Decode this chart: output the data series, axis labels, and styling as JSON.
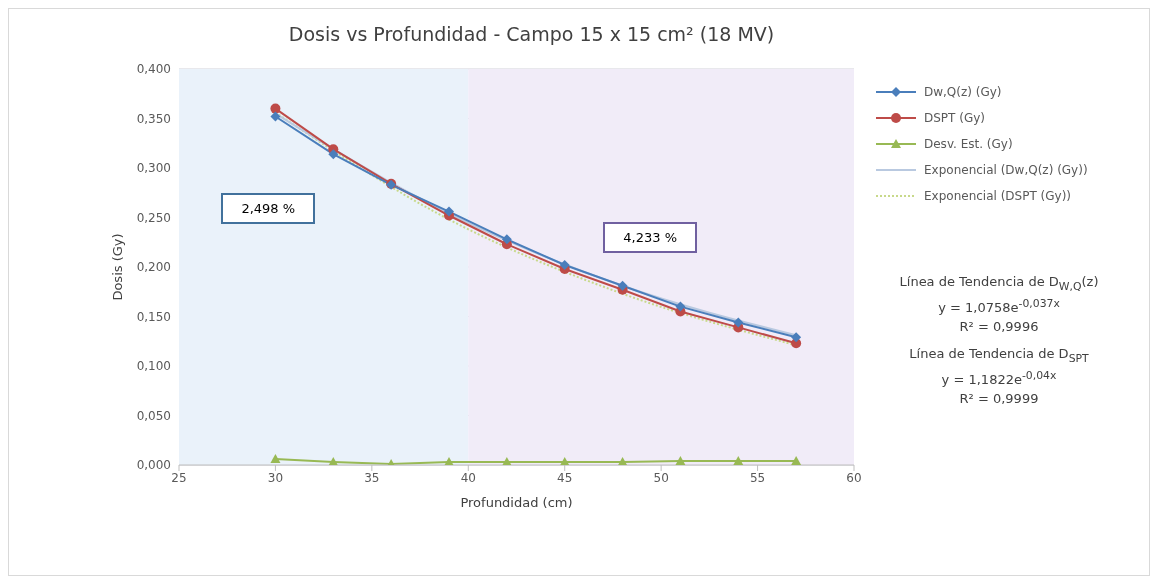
{
  "chart_data": {
    "type": "line",
    "title": "Dosis vs Profundidad - Campo 15 x 15 cm² (18 MV)",
    "xlabel": "Profundidad (cm)",
    "ylabel": "Dosis (Gy)",
    "x": [
      30,
      33,
      36,
      39,
      42,
      45,
      48,
      51,
      54,
      57
    ],
    "series": [
      {
        "name": "Dw,Q(z) (Gy)",
        "color": "#4a7ebb",
        "marker": "diamond",
        "values": [
          0.352,
          0.314,
          0.283,
          0.256,
          0.228,
          0.202,
          0.181,
          0.16,
          0.144,
          0.129
        ]
      },
      {
        "name": "DSPT (Gy)",
        "color": "#be4b48",
        "marker": "circle",
        "values": [
          0.36,
          0.319,
          0.284,
          0.252,
          0.223,
          0.198,
          0.177,
          0.155,
          0.139,
          0.123
        ]
      },
      {
        "name": "Desv. Est. (Gy)",
        "color": "#98b954",
        "marker": "triangle",
        "values": [
          0.006,
          0.003,
          0.001,
          0.003,
          0.003,
          0.003,
          0.003,
          0.004,
          0.004,
          0.004
        ]
      },
      {
        "name": "Exponencial (Dw,Q(z) (Gy))",
        "color": "#b9c9e0",
        "marker": "none",
        "line_style": "solid",
        "x": [
          30,
          39,
          48,
          57
        ],
        "values": [
          0.355,
          0.254,
          0.181,
          0.131
        ]
      },
      {
        "name": "Exponencial (DSPT (Gy))",
        "color": "#c8d98a",
        "marker": "none",
        "line_style": "dotted",
        "x": [
          30,
          39,
          48,
          57
        ],
        "values": [
          0.356,
          0.248,
          0.173,
          0.121
        ]
      }
    ],
    "xlim": [
      25,
      60
    ],
    "xticks": [
      25,
      30,
      35,
      40,
      45,
      50,
      55,
      60
    ],
    "ylim": [
      0,
      0.4
    ],
    "yticks": [
      {
        "value": 0,
        "label": "0,000"
      },
      {
        "value": 0.05,
        "label": "0,050"
      },
      {
        "value": 0.1,
        "label": "0,100"
      },
      {
        "value": 0.15,
        "label": "0,150"
      },
      {
        "value": 0.2,
        "label": "0,200"
      },
      {
        "value": 0.25,
        "label": "0,250"
      },
      {
        "value": 0.3,
        "label": "0,300"
      },
      {
        "value": 0.35,
        "label": "0,350"
      },
      {
        "value": 0.4,
        "label": "0,400"
      }
    ],
    "bands": [
      {
        "axis": "x",
        "from": 25,
        "to": 40,
        "color": "#eaf2fa"
      },
      {
        "axis": "x",
        "from": 40,
        "to": 60,
        "color": "#f1ecf8"
      }
    ],
    "annotations": [
      "2,498 %",
      "4,233 %",
      "Línea de Tendencia de D$_{W,Q}$(z)",
      "y = 1,0758e$^{-0,037x}$",
      "R² = 0,9996",
      "Línea de Tendencia de D$_{SPT}$",
      "y = 1,1822e$^{-0,04x}$",
      "R² = 0,9999"
    ],
    "grid": "y",
    "legend": "right"
  }
}
